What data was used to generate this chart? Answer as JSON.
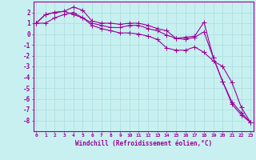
{
  "xlabel": "Windchill (Refroidissement éolien,°C)",
  "x": [
    0,
    1,
    2,
    3,
    4,
    5,
    6,
    7,
    8,
    9,
    10,
    11,
    12,
    13,
    14,
    15,
    16,
    17,
    18,
    19,
    20,
    21,
    22,
    23
  ],
  "line1": [
    1.0,
    1.8,
    2.0,
    2.1,
    2.5,
    2.2,
    1.2,
    1.0,
    1.0,
    0.9,
    1.0,
    1.0,
    0.8,
    0.5,
    0.3,
    -0.4,
    -0.3,
    -0.2,
    1.1,
    -2.2,
    -4.4,
    -6.3,
    -7.3,
    -8.2
  ],
  "line2": [
    1.0,
    1.8,
    2.0,
    2.1,
    1.8,
    1.5,
    1.0,
    0.8,
    0.6,
    0.6,
    0.8,
    0.8,
    0.5,
    0.3,
    -0.1,
    -0.4,
    -0.5,
    -0.3,
    0.2,
    -2.2,
    -4.4,
    -6.5,
    -7.5,
    -8.2
  ],
  "line3": [
    1.0,
    1.0,
    1.5,
    1.8,
    2.0,
    1.5,
    0.8,
    0.5,
    0.3,
    0.1,
    0.1,
    0.0,
    -0.2,
    -0.5,
    -1.3,
    -1.5,
    -1.5,
    -1.2,
    -1.7,
    -2.5,
    -3.0,
    -4.5,
    -6.8,
    -8.2
  ],
  "color": "#990099",
  "bg_color": "#c8f0f0",
  "ylim": [
    -9,
    3
  ],
  "xlim": [
    -0.3,
    23.3
  ],
  "yticks": [
    2,
    1,
    0,
    -1,
    -2,
    -3,
    -4,
    -5,
    -6,
    -7,
    -8
  ],
  "grid_color": "#aadddd",
  "linewidth": 0.8,
  "markersize": 3,
  "xlabel_fontsize": 5.5,
  "xtick_fontsize": 4.5,
  "ytick_fontsize": 5.5
}
